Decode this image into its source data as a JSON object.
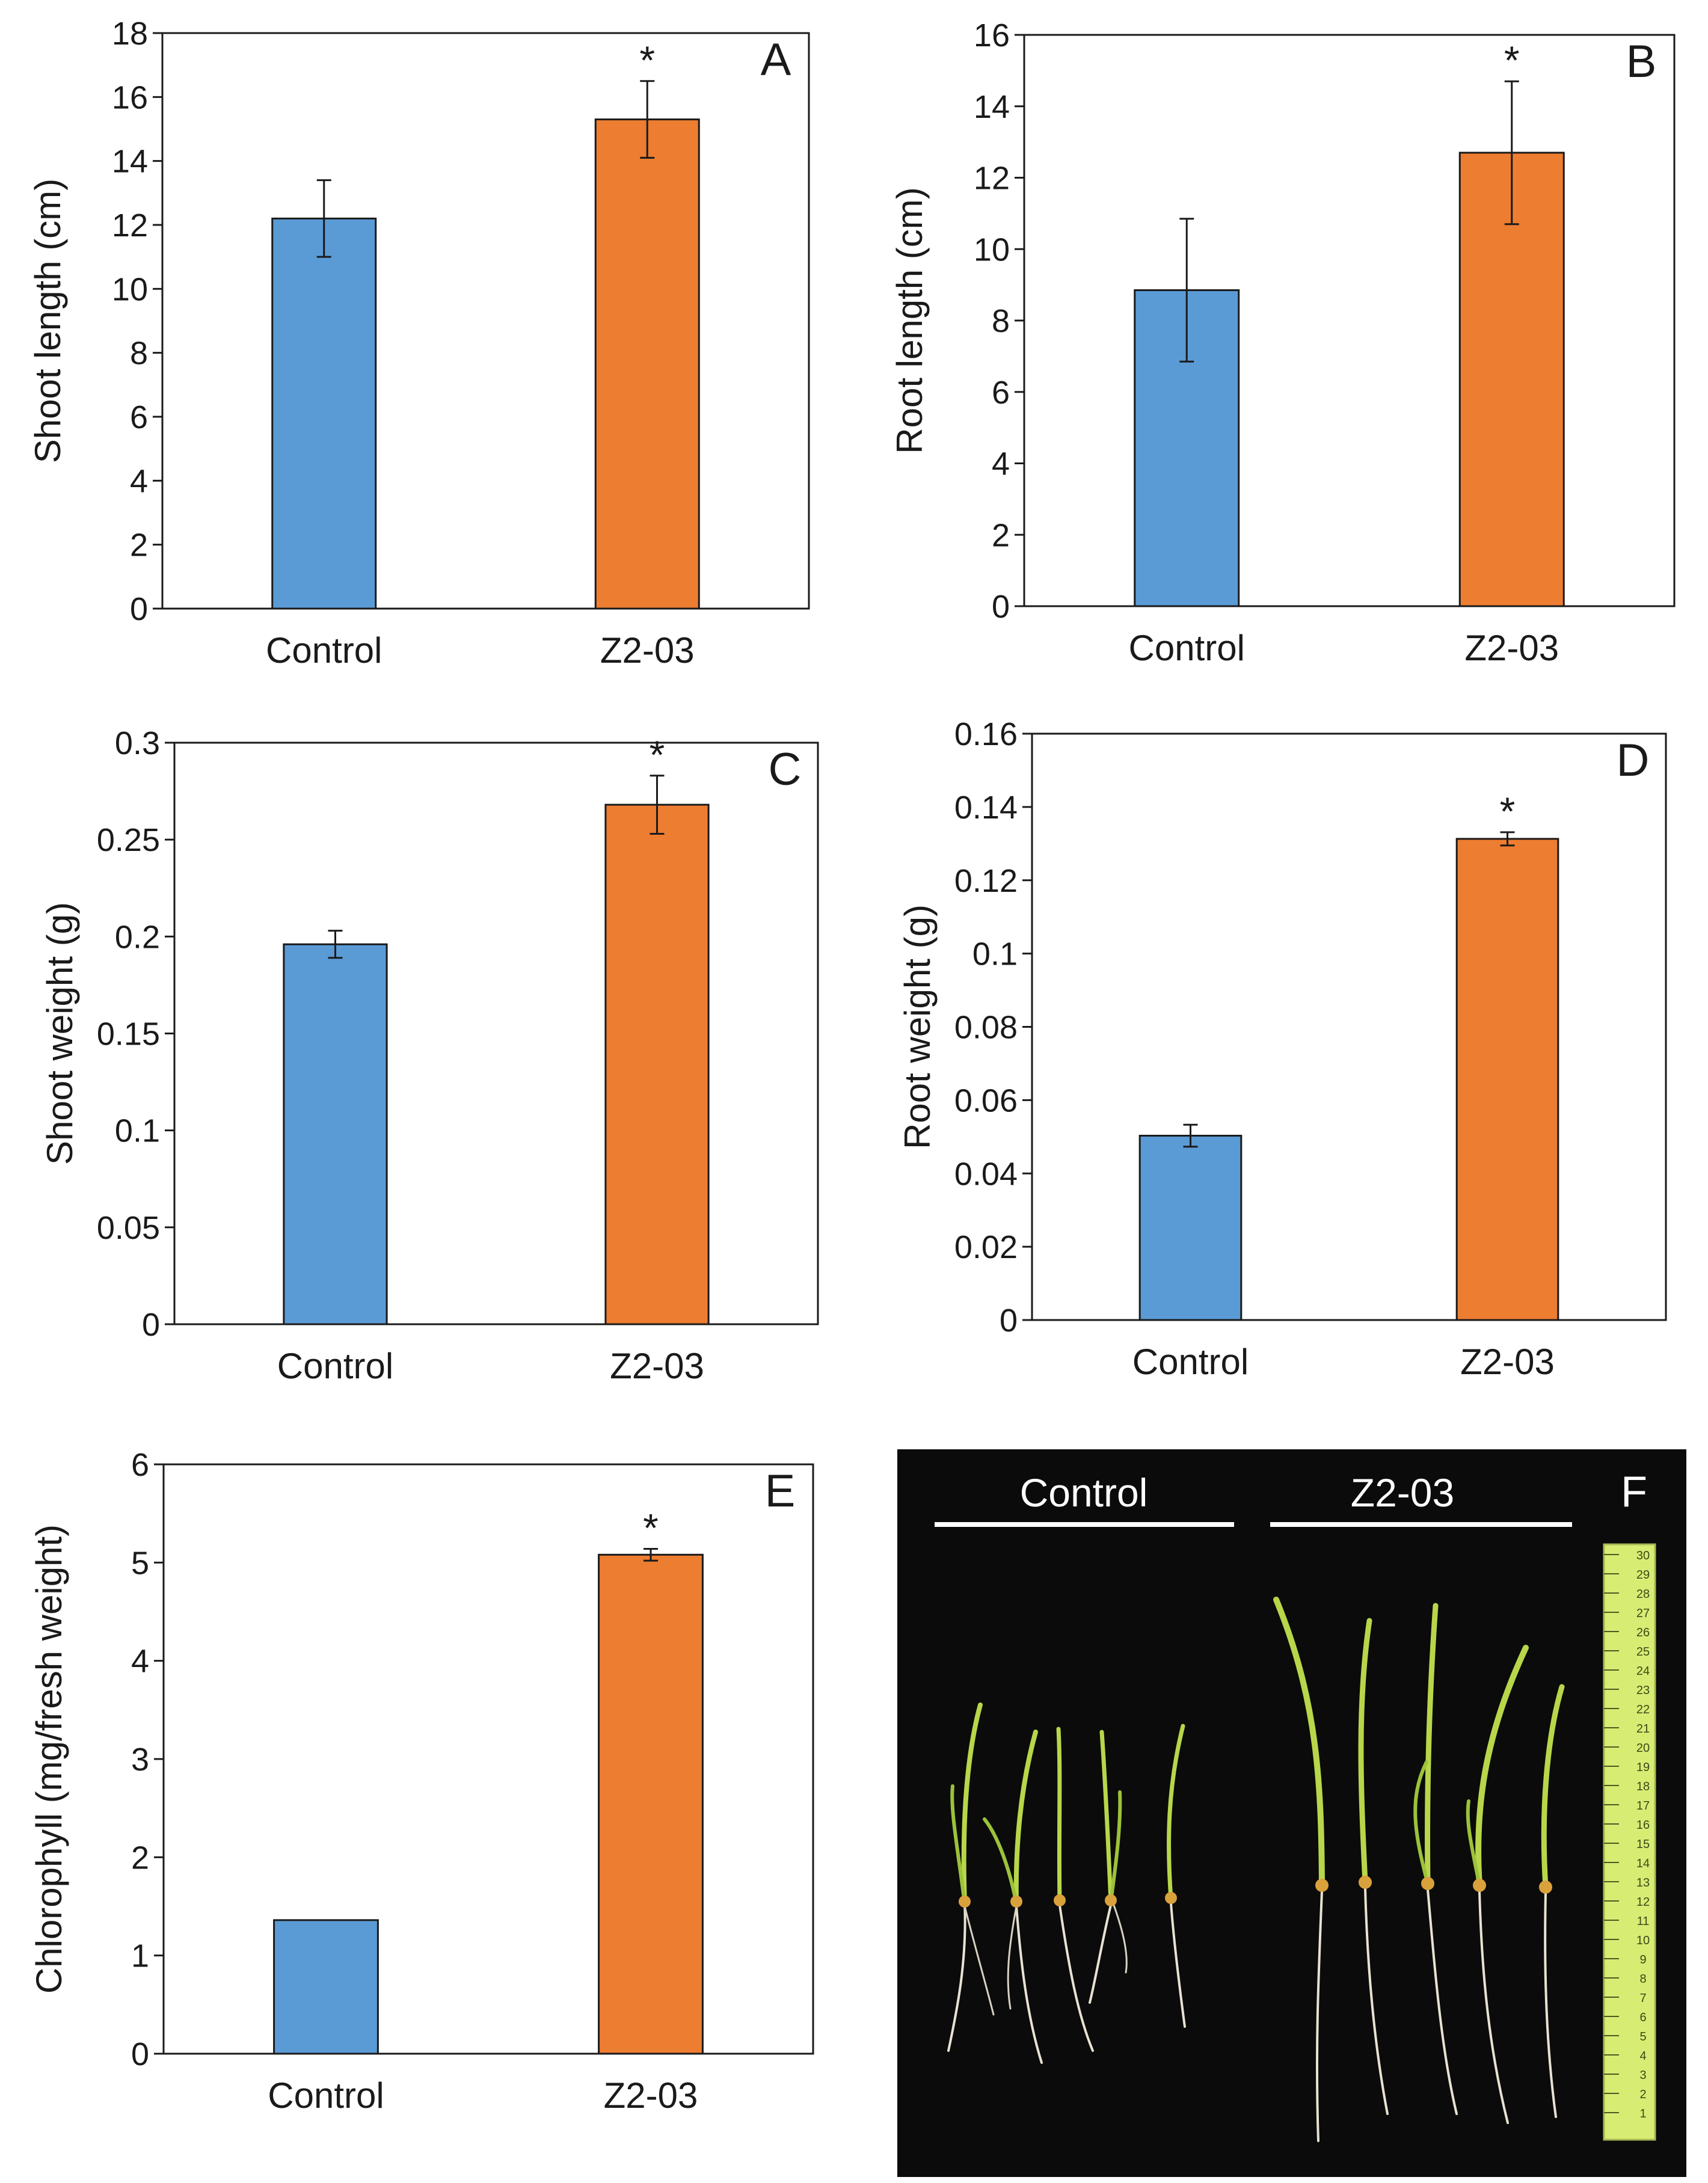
{
  "colors": {
    "control": "#5B9BD5",
    "treatment": "#ED7D31",
    "axis": "#1a1a1a",
    "error": "#1a1a1a"
  },
  "chart_data": [
    {
      "type": "bar",
      "panel_label": "A",
      "categories": [
        "Control",
        "Z2-03"
      ],
      "values": [
        12.2,
        15.3
      ],
      "errors": [
        1.2,
        1.2
      ],
      "significance": [
        "",
        "*"
      ],
      "title": "",
      "xlabel": "",
      "ylabel": "Shoot length (cm)",
      "ylim": [
        0,
        18
      ],
      "yticks": [
        0,
        2,
        4,
        6,
        8,
        10,
        12,
        14,
        16,
        18
      ],
      "ytick_labels": [
        "0",
        "2",
        "4",
        "6",
        "8",
        "10",
        "12",
        "14",
        "16",
        "18"
      ],
      "grid": false
    },
    {
      "type": "bar",
      "panel_label": "B",
      "categories": [
        "Control",
        "Z2-03"
      ],
      "values": [
        8.85,
        12.7
      ],
      "errors": [
        2.0,
        2.0
      ],
      "significance": [
        "",
        "*"
      ],
      "title": "",
      "xlabel": "",
      "ylabel": "Root length (cm)",
      "ylim": [
        0,
        16
      ],
      "yticks": [
        0,
        2,
        4,
        6,
        8,
        10,
        12,
        14,
        16
      ],
      "ytick_labels": [
        "0",
        "2",
        "4",
        "6",
        "8",
        "10",
        "12",
        "14",
        "16"
      ],
      "grid": false
    },
    {
      "type": "bar",
      "panel_label": "C",
      "categories": [
        "Control",
        "Z2-03"
      ],
      "values": [
        0.196,
        0.268
      ],
      "errors": [
        0.007,
        0.015
      ],
      "significance": [
        "",
        "*"
      ],
      "title": "",
      "xlabel": "",
      "ylabel": "Shoot weight (g)",
      "ylim": [
        0,
        0.3
      ],
      "yticks": [
        0,
        0.05,
        0.1,
        0.15,
        0.2,
        0.25,
        0.3
      ],
      "ytick_labels": [
        "0",
        "0.05",
        "0.1",
        "0.15",
        "0.2",
        "0.25",
        "0.3"
      ],
      "grid": false
    },
    {
      "type": "bar",
      "panel_label": "D",
      "categories": [
        "Control",
        "Z2-03"
      ],
      "values": [
        0.0503,
        0.1313
      ],
      "errors": [
        0.003,
        0.0018
      ],
      "significance": [
        "",
        "*"
      ],
      "title": "",
      "xlabel": "",
      "ylabel": "Root weight (g)",
      "ylim": [
        0,
        0.16
      ],
      "yticks": [
        0,
        0.02,
        0.04,
        0.06,
        0.08,
        0.1,
        0.12,
        0.14,
        0.16
      ],
      "ytick_labels": [
        "0",
        "0.02",
        "0.04",
        "0.06",
        "0.08",
        "0.1",
        "0.12",
        "0.14",
        "0.16"
      ],
      "grid": false
    },
    {
      "type": "bar",
      "panel_label": "E",
      "categories": [
        "Control",
        "Z2-03"
      ],
      "values": [
        1.36,
        5.08
      ],
      "errors": [
        0,
        0.06
      ],
      "significance": [
        "",
        "*"
      ],
      "title": "",
      "xlabel": "",
      "ylabel": "Chlorophyll (mg/fresh weight)",
      "ylim": [
        0,
        6
      ],
      "yticks": [
        0,
        1,
        2,
        3,
        4,
        5,
        6
      ],
      "ytick_labels": [
        "0",
        "1",
        "2",
        "3",
        "4",
        "5",
        "6"
      ],
      "grid": false
    }
  ],
  "photo": {
    "panel_label": "F",
    "group_labels": [
      "Control",
      "Z2-03"
    ],
    "ruler_labels": [
      "30",
      "29",
      "28",
      "27",
      "26",
      "25",
      "24",
      "23",
      "22",
      "21",
      "20",
      "19",
      "18",
      "17",
      "16",
      "15",
      "14",
      "13",
      "12",
      "11",
      "10",
      "9",
      "8",
      "7",
      "6",
      "5",
      "4",
      "3",
      "2",
      "1"
    ]
  }
}
